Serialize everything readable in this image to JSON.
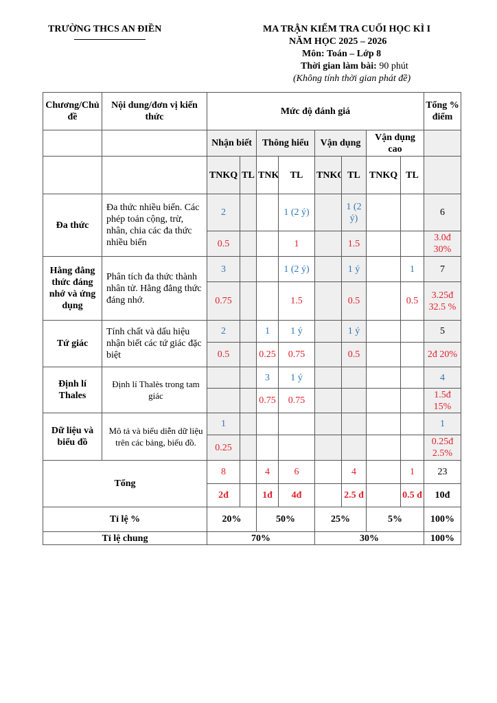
{
  "header": {
    "school": "TRƯỜNG THCS AN ĐIỀN",
    "title": "MA TRẬN KIỂM TRA CUỐI HỌC KÌ I",
    "year": "NĂM HỌC 2025 – 2026",
    "subject": "Môn: Toán – Lớp 8",
    "time_label": "Thời gian làm bài:",
    "time_value": "90 phút",
    "note": "(Không tính thời gian phát đề)"
  },
  "table": {
    "col_topic": "Chương/Chủ đề",
    "col_content": "Nội dung/đơn vị kiến thức",
    "col_levels": "Mức độ đánh giá",
    "col_total": "Tổng % điểm",
    "levels": [
      "Nhận biết",
      "Thông hiểu",
      "Vận dụng",
      "Vận dụng cao"
    ],
    "subcols": [
      "TNKQ",
      "TL",
      "TNKQ",
      "TL",
      "TNKQ",
      "TL",
      "TNKQ",
      "TL"
    ],
    "topics": [
      {
        "name": "Đa thức",
        "content": "Đa thức nhiều biến. Các phép toán cộng, trừ, nhân, chia các đa thức nhiều biến",
        "counts": [
          "2",
          "",
          "",
          "1 (2 ý)",
          "",
          "1 (2 ý)",
          "",
          ""
        ],
        "count_total": "6",
        "points": [
          "0.5",
          "",
          "",
          "1",
          "",
          "1.5",
          "",
          ""
        ],
        "point_total": "3.0đ 30%"
      },
      {
        "name": "Hằng đẳng thức đáng nhớ và ứng dụng",
        "content": "Phân tích đa thức thành nhân tử. Hằng đẳng thức đáng nhớ.",
        "counts": [
          "3",
          "",
          "",
          "1 (2 ý)",
          "",
          "1 ý",
          "",
          "1"
        ],
        "count_total": "7",
        "points": [
          "0.75",
          "",
          "",
          "1.5",
          "",
          "0.5",
          "",
          "0.5"
        ],
        "point_total": "3.25đ 32.5 %"
      },
      {
        "name": "Tứ giác",
        "content": "Tính chất và dấu hiệu nhận biết các tứ giác đặc biệt",
        "counts": [
          "2",
          "",
          "1",
          "1 ý",
          "",
          "1 ý",
          "",
          ""
        ],
        "count_total": "5",
        "points": [
          "0.5",
          "",
          "0.25",
          "0.75",
          "",
          "0.5",
          "",
          ""
        ],
        "point_total": "2đ 20%"
      },
      {
        "name": "Định lí Thales",
        "content": "Định lí Thalès trong tam giác",
        "counts": [
          "",
          "",
          "3",
          "1 ý",
          "",
          "",
          "",
          ""
        ],
        "count_total": "4",
        "points": [
          "",
          "",
          "0.75",
          "0.75",
          "",
          "",
          "",
          ""
        ],
        "point_total": "1.5đ 15%"
      },
      {
        "name": "Dữ liệu và biểu đồ",
        "content": "Mô tả và biểu diễn dữ liệu trên các bảng, biểu đồ.",
        "counts": [
          "1",
          "",
          "",
          "",
          "",
          "",
          "",
          ""
        ],
        "count_total": "1",
        "points": [
          "0.25",
          "",
          "",
          "",
          "",
          "",
          "",
          ""
        ],
        "point_total": "0.25đ 2.5%"
      }
    ],
    "total": {
      "label": "Tổng",
      "counts": [
        "8",
        "",
        "4",
        "6",
        "",
        "4",
        "",
        "1"
      ],
      "count_total": "23",
      "points": [
        "2đ",
        "",
        "1đ",
        "4đ",
        "",
        "2.5 đ",
        "",
        "0.5 đ"
      ],
      "point_total": "10đ"
    },
    "ratio": {
      "label": "Tỉ lệ %",
      "values": [
        "20%",
        "50%",
        "25%",
        "5%"
      ],
      "total": "100%"
    },
    "overall": {
      "label": "Tỉ lệ chung",
      "values": [
        "70%",
        "30%"
      ],
      "total": "100%"
    }
  },
  "colors": {
    "count": "#2e75b6",
    "points": "#e0202a",
    "shade": "#efefef"
  }
}
